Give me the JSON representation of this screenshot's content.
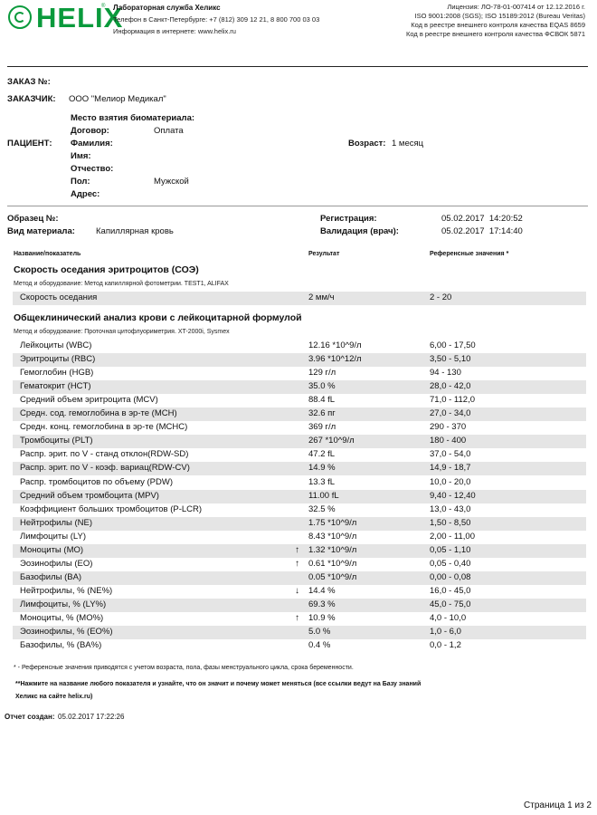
{
  "header": {
    "logo_text": "HELIX",
    "logo_mark": "®",
    "lab_name": "Лабораторная служба Хеликс",
    "phone_line": "Телефон в Санкт-Петербурге: +7 (812) 309 12 21, 8 800 700 03 03",
    "web_line": "Информация в интернете: www.helix.ru",
    "license_lines": [
      "Лицензия: ЛО-78-01-007414 от 12.12.2016 г.",
      "ISO 9001:2008 (SGS); ISO 15189:2012 (Bureau Veritas)",
      "Код в реестре внешнего контроля качества EQAS 8659",
      "Код в реестре внешнего контроля качества ФСВОК 5871"
    ]
  },
  "order": {
    "order_label": "ЗАКАЗ №:",
    "order_value": "",
    "customer_label": "ЗАКАЗЧИК:",
    "customer_value": "ООО \"Мелиор Медикал\""
  },
  "patient": {
    "section_label": "ПАЦИЕНТ:",
    "sample_place_label": "Место взятия биоматериала:",
    "contract_label": "Договор:",
    "contract_value": "Оплата",
    "surname_label": "Фамилия:",
    "name_label": "Имя:",
    "patronymic_label": "Отчество:",
    "sex_label": "Пол:",
    "sex_value": "Мужской",
    "address_label": "Адрес:",
    "age_label": "Возраст:",
    "age_value": "1 месяц"
  },
  "sample": {
    "sample_label": "Образец №:",
    "material_label": "Вид материала:",
    "material_value": "Капиллярная кровь",
    "registration_label": "Регистрация:",
    "registration_value": "05.02.2017  14:20:52",
    "validation_label": "Валидация (врач):",
    "validation_value": "05.02.2017  17:14:40"
  },
  "table": {
    "col_name": "Название/показатель",
    "col_result": "Результат",
    "col_ref": "Референсные значения *"
  },
  "esr": {
    "title": "Скорость оседания эритроцитов (СОЭ)",
    "method": "Метод и оборудование:  Метод капиллярной фотометрии. TEST1, ALIFAX",
    "rows": [
      {
        "name": "Скорость оседания",
        "flag": "",
        "result": "2 мм/ч",
        "ref": "2 - 20"
      }
    ]
  },
  "cbc": {
    "title": "Общеклинический анализ крови с лейкоцитарной формулой",
    "method": "Метод и оборудование:  Проточная цитофлуориметрия. XT-2000i, Sysmex",
    "rows": [
      {
        "name": "Лейкоциты (WBC)",
        "flag": "",
        "result": "12.16 *10^9/л",
        "ref": "6,00 - 17,50"
      },
      {
        "name": "Эритроциты (RBC)",
        "flag": "",
        "result": "3.96 *10^12/л",
        "ref": "3,50 - 5,10"
      },
      {
        "name": "Гемоглобин (HGB)",
        "flag": "",
        "result": "129 г/л",
        "ref": "94 - 130"
      },
      {
        "name": "Гематокрит (HCT)",
        "flag": "",
        "result": "35.0 %",
        "ref": "28,0 - 42,0"
      },
      {
        "name": "Средний объем эритроцита (MCV)",
        "flag": "",
        "result": "88.4 fL",
        "ref": "71,0 - 112,0"
      },
      {
        "name": "Средн. сод. гемоглобина в эр-те (MCH)",
        "flag": "",
        "result": "32.6 пг",
        "ref": "27,0 - 34,0"
      },
      {
        "name": "Средн. конц. гемоглобина в эр-те (MCHC)",
        "flag": "",
        "result": "369 г/л",
        "ref": "290 - 370"
      },
      {
        "name": "Тромбоциты (PLT)",
        "flag": "",
        "result": "267 *10^9/л",
        "ref": "180 - 400"
      },
      {
        "name": "Распр. эрит. по V - станд отклон(RDW-SD)",
        "flag": "",
        "result": "47.2 fL",
        "ref": "37,0 - 54,0"
      },
      {
        "name": "Распр. эрит. по V - коэф. вариац(RDW-CV)",
        "flag": "",
        "result": "14.9 %",
        "ref": "14,9 - 18,7"
      },
      {
        "name": "Распр. тромбоцитов по объему (PDW)",
        "flag": "",
        "result": "13.3 fL",
        "ref": "10,0 - 20,0"
      },
      {
        "name": "Средний объем тромбоцита (MPV)",
        "flag": "",
        "result": "11.00 fL",
        "ref": "9,40 - 12,40"
      },
      {
        "name": "Коэффициент больших тромбоцитов (P-LCR)",
        "flag": "",
        "result": "32.5 %",
        "ref": "13,0 - 43,0"
      },
      {
        "name": "Нейтрофилы (NE)",
        "flag": "",
        "result": "1.75 *10^9/л",
        "ref": "1,50 - 8,50"
      },
      {
        "name": "Лимфоциты (LY)",
        "flag": "",
        "result": "8.43 *10^9/л",
        "ref": "2,00 - 11,00"
      },
      {
        "name": "Моноциты (MO)",
        "flag": "↑",
        "result": "1.32 *10^9/л",
        "ref": "0,05 - 1,10"
      },
      {
        "name": "Эозинофилы (EO)",
        "flag": "↑",
        "result": "0.61 *10^9/л",
        "ref": "0,05 - 0,40"
      },
      {
        "name": "Базофилы (BA)",
        "flag": "",
        "result": "0.05 *10^9/л",
        "ref": "0,00 - 0,08"
      },
      {
        "name": "Нейтрофилы, % (NE%)",
        "flag": "↓",
        "result": "14.4 %",
        "ref": "16,0 - 45,0"
      },
      {
        "name": "Лимфоциты, % (LY%)",
        "flag": "",
        "result": "69.3 %",
        "ref": "45,0 - 75,0"
      },
      {
        "name": "Моноциты, % (MO%)",
        "flag": "↑",
        "result": "10.9 %",
        "ref": "4,0 - 10,0"
      },
      {
        "name": "Эозинофилы, % (EO%)",
        "flag": "",
        "result": "5.0 %",
        "ref": "1,0 - 6,0"
      },
      {
        "name": "Базофилы, % (BA%)",
        "flag": "",
        "result": "0.4 %",
        "ref": "0,0 - 1,2"
      }
    ]
  },
  "footnotes": {
    "note1": "* - Референсные значения приводятся с учетом возраста, пола, фазы менструального цикла, срока беременности.",
    "note2_line1": "**Нажмите на название любого показателя и узнайте, что он значит и почему может меняться (все ссылки ведут на Базу знаний",
    "note2_line2": "Хеликс на сайте helix.ru)"
  },
  "report": {
    "created_label": "Отчет создан:",
    "created_value": "05.02.2017 17:22:26"
  },
  "page": {
    "label": "Страница 1 из 2"
  }
}
